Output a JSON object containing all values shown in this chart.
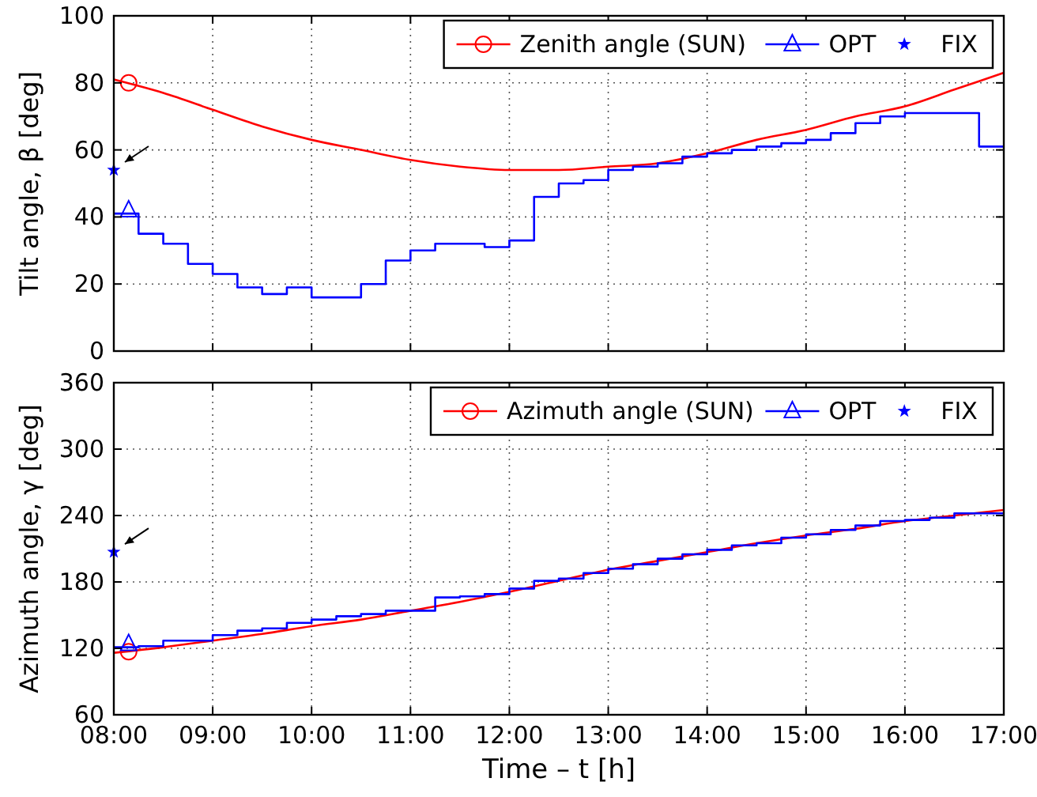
{
  "chart_data": [
    {
      "type": "line",
      "ylabel": "Tilt angle,  β [deg]",
      "xlim": [
        8,
        17
      ],
      "ylim": [
        0,
        100
      ],
      "xticks": [
        {
          "value": 8,
          "label": null
        },
        {
          "value": 9,
          "label": null
        },
        {
          "value": 10,
          "label": null
        },
        {
          "value": 11,
          "label": null
        },
        {
          "value": 12,
          "label": null
        },
        {
          "value": 13,
          "label": null
        },
        {
          "value": 14,
          "label": null
        },
        {
          "value": 15,
          "label": null
        },
        {
          "value": 16,
          "label": null
        },
        {
          "value": 17,
          "label": null
        }
      ],
      "yticks": [
        0,
        20,
        40,
        60,
        80,
        100
      ],
      "grid": true,
      "legend": "top right",
      "tick_labels": "y",
      "line_style": "solid",
      "series": [
        {
          "name": "Zenith angle (SUN)",
          "type": "line",
          "color": "#ff0000",
          "x": [
            8,
            8.5,
            9,
            9.5,
            10,
            10.5,
            11,
            11.5,
            12,
            12.5,
            13,
            13.5,
            14,
            14.5,
            15,
            15.5,
            16,
            16.5,
            17
          ],
          "values": [
            81,
            77,
            72,
            67,
            63,
            60,
            57,
            55,
            54,
            54,
            55,
            56,
            59,
            63,
            66,
            70,
            73,
            78,
            83
          ]
        },
        {
          "type": "scatter",
          "marker": "circle",
          "color": "#ff0000",
          "x": [
            8.15
          ],
          "values": [
            80
          ]
        },
        {
          "name": "OPT",
          "type": "step",
          "color": "#0000ff",
          "x": [
            8,
            8.25,
            8.5,
            8.75,
            9,
            9.25,
            9.5,
            9.75,
            10,
            10.25,
            10.5,
            10.75,
            11,
            11.25,
            11.5,
            11.75,
            12,
            12.25,
            12.5,
            12.75,
            13,
            13.25,
            13.5,
            13.75,
            14,
            14.25,
            14.5,
            14.75,
            15,
            15.25,
            15.5,
            15.75,
            16,
            16.25,
            16.5,
            16.75,
            17
          ],
          "values": [
            41,
            35,
            32,
            26,
            23,
            19,
            17,
            19,
            16,
            16,
            20,
            27,
            30,
            32,
            32,
            31,
            33,
            46,
            50,
            51,
            54,
            55,
            56,
            58,
            59,
            60,
            61,
            62,
            63,
            65,
            68,
            70,
            71,
            71,
            71,
            61,
            61
          ]
        },
        {
          "type": "scatter",
          "marker": "triangle",
          "color": "#0000ff",
          "x": [
            8.15
          ],
          "values": [
            42
          ]
        },
        {
          "name": "FIX",
          "type": "scatter",
          "marker": "star",
          "color": "#0000ff",
          "x": [
            8
          ],
          "values": [
            54
          ]
        }
      ]
    },
    {
      "type": "line",
      "ylabel": "Azimuth angle,  γ [deg]",
      "xlabel": "Time – t [h]",
      "xlim": [
        8,
        17
      ],
      "ylim": [
        60,
        360
      ],
      "xticks": [
        {
          "value": 8,
          "label": "08:00"
        },
        {
          "value": 9,
          "label": "09:00"
        },
        {
          "value": 10,
          "label": "10:00"
        },
        {
          "value": 11,
          "label": "11:00"
        },
        {
          "value": 12,
          "label": "12:00"
        },
        {
          "value": 13,
          "label": "13:00"
        },
        {
          "value": 14,
          "label": "14:00"
        },
        {
          "value": 15,
          "label": "15:00"
        },
        {
          "value": 16,
          "label": "16:00"
        },
        {
          "value": 17,
          "label": "17:00"
        }
      ],
      "yticks": [
        60,
        120,
        180,
        240,
        300,
        360
      ],
      "grid": true,
      "legend": "top right",
      "line_style": "solid",
      "series": [
        {
          "name": "Azimuth angle (SUN)",
          "type": "line",
          "color": "#ff0000",
          "x": [
            8,
            8.5,
            9,
            9.5,
            10,
            10.5,
            11,
            11.5,
            12,
            12.5,
            13,
            13.5,
            14,
            14.5,
            15,
            15.5,
            16,
            16.5,
            17
          ],
          "values": [
            116,
            121,
            127,
            133,
            140,
            146,
            154,
            162,
            171,
            181,
            191,
            199,
            207,
            215,
            222,
            228,
            235,
            240,
            245
          ]
        },
        {
          "type": "scatter",
          "marker": "circle",
          "color": "#ff0000",
          "x": [
            8.15
          ],
          "values": [
            117
          ]
        },
        {
          "name": "OPT",
          "type": "step",
          "color": "#0000ff",
          "x": [
            8,
            8.25,
            8.5,
            8.75,
            9,
            9.25,
            9.5,
            9.75,
            10,
            10.25,
            10.5,
            10.75,
            11,
            11.25,
            11.5,
            11.75,
            12,
            12.25,
            12.5,
            12.75,
            13,
            13.25,
            13.5,
            13.75,
            14,
            14.25,
            14.5,
            14.75,
            15,
            15.25,
            15.5,
            15.75,
            16,
            16.25,
            16.5,
            16.75,
            17
          ],
          "values": [
            121,
            122,
            127,
            127,
            132,
            136,
            138,
            143,
            146,
            149,
            151,
            154,
            154,
            166,
            167,
            169,
            174,
            181,
            183,
            188,
            192,
            196,
            201,
            205,
            209,
            213,
            215,
            220,
            223,
            227,
            231,
            235,
            236,
            238,
            242,
            242,
            242
          ]
        },
        {
          "type": "scatter",
          "marker": "triangle",
          "color": "#0000ff",
          "x": [
            8.15
          ],
          "values": [
            124
          ]
        },
        {
          "name": "FIX",
          "type": "scatter",
          "marker": "star",
          "color": "#0000ff",
          "x": [
            8
          ],
          "values": [
            207
          ]
        }
      ]
    }
  ]
}
